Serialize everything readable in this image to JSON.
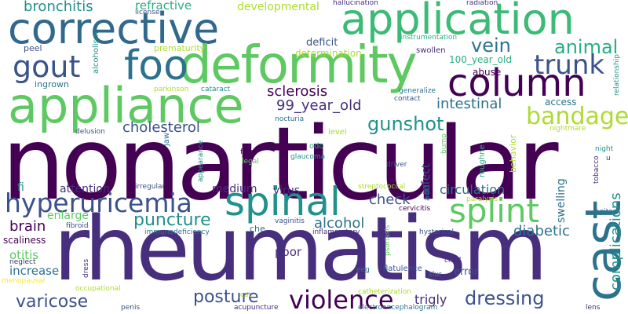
{
  "palette": {
    "dark_purple": "#440154",
    "indigo": "#472f7d",
    "blue": "#3b528b",
    "steel_blue": "#2c728e",
    "teal": "#21918c",
    "sea_green": "#28ae80",
    "green": "#5ec962",
    "lime": "#addc30",
    "yellow": "#fde725"
  },
  "words": [
    {
      "text": "nonarticular",
      "color": "#440154"
    },
    {
      "text": "rheumatism",
      "color": "#472f7d"
    },
    {
      "text": "appliance",
      "color": "#5ec962"
    },
    {
      "text": "corrective",
      "color": "#31688e"
    },
    {
      "text": "application",
      "color": "#3bbb75"
    },
    {
      "text": "deformity",
      "color": "#5ec962"
    },
    {
      "text": "foo",
      "color": "#2c728e"
    },
    {
      "text": "gout",
      "color": "#3b528b"
    },
    {
      "text": "column",
      "color": "#440154"
    },
    {
      "text": "spinal",
      "color": "#21918c"
    },
    {
      "text": "cast",
      "color": "#2c728e"
    },
    {
      "text": "splint",
      "color": "#5ec962"
    },
    {
      "text": "hyperuricemia",
      "color": "#3b528b"
    },
    {
      "text": "violence",
      "color": "#440154"
    },
    {
      "text": "trunk",
      "color": "#3b528b"
    },
    {
      "text": "bandage",
      "color": "#addc30"
    },
    {
      "text": "animal",
      "color": "#28ae80"
    },
    {
      "text": "vein",
      "color": "#2c728e"
    },
    {
      "text": "gunshot",
      "color": "#21918c"
    },
    {
      "text": "dressing",
      "color": "#3b528b"
    },
    {
      "text": "posture",
      "color": "#3b528b"
    },
    {
      "text": "puncture",
      "color": "#21918c"
    },
    {
      "text": "varicose",
      "color": "#3b528b"
    },
    {
      "text": "bronchitis",
      "color": "#21918c"
    },
    {
      "text": "sclerosis",
      "color": "#440154"
    },
    {
      "text": "99_year_old",
      "color": "#472f7d"
    },
    {
      "text": "intestinal",
      "color": "#2c728e"
    },
    {
      "text": "cholesterol",
      "color": "#3b528b"
    },
    {
      "text": "brain",
      "color": "#440154"
    },
    {
      "text": "alcohol",
      "color": "#2c728e"
    },
    {
      "text": "check",
      "color": "#3b528b"
    },
    {
      "text": "diabetic",
      "color": "#2c728e"
    },
    {
      "text": "circulation",
      "color": "#2c728e"
    },
    {
      "text": "complications",
      "color": "#21918c"
    },
    {
      "text": "refractive",
      "color": "#28ae80"
    },
    {
      "text": "developmental",
      "color": "#addc30"
    },
    {
      "text": "trigly",
      "color": "#472f7d"
    },
    {
      "text": "enlarge",
      "color": "#5ec962"
    },
    {
      "text": "increase",
      "color": "#2c728e"
    },
    {
      "text": "otitis",
      "color": "#5ec962"
    },
    {
      "text": "attention",
      "color": "#472f7d"
    },
    {
      "text": "medium",
      "color": "#472f7d"
    },
    {
      "text": "poor",
      "color": "#472f7d"
    },
    {
      "text": "virus",
      "color": "#472f7d"
    },
    {
      "text": "infect",
      "color": "#3b528b"
    },
    {
      "text": "swelling",
      "color": "#2c728e"
    },
    {
      "text": "deficit",
      "color": "#3b528b"
    },
    {
      "text": "determination",
      "color": "#addc30"
    },
    {
      "text": "abuse",
      "color": "#440154"
    },
    {
      "text": "access",
      "color": "#2c728e"
    },
    {
      "text": "error",
      "color": "#3b528b"
    },
    {
      "text": "scaliness",
      "color": "#440154"
    },
    {
      "text": "fi",
      "color": "#21918c"
    },
    {
      "text": "ingrown",
      "color": "#2c728e"
    },
    {
      "text": "peel",
      "color": "#3b528b"
    },
    {
      "text": "prematurity",
      "color": "#addc30"
    },
    {
      "text": "alcoholism",
      "color": "#21918c"
    },
    {
      "text": "license",
      "color": "#3b528b"
    },
    {
      "text": "hallucination",
      "color": "#472f7d"
    },
    {
      "text": "radiation",
      "color": "#472f7d"
    },
    {
      "text": "instrumentation",
      "color": "#28ae80"
    },
    {
      "text": "swollen",
      "color": "#472f7d"
    },
    {
      "text": "100_year_old",
      "color": "#28ae80"
    },
    {
      "text": "generalize",
      "color": "#2c728e"
    },
    {
      "text": "contact",
      "color": "#3b528b"
    },
    {
      "text": "tobacco",
      "color": "#472f7d"
    },
    {
      "text": "relationship",
      "color": "#21918c"
    },
    {
      "text": "parkinson",
      "color": "#addc30"
    },
    {
      "text": "cataract",
      "color": "#21918c"
    },
    {
      "text": "delusion",
      "color": "#3b528b"
    },
    {
      "text": "jaw",
      "color": "#2c728e"
    },
    {
      "text": "appearance",
      "color": "#21918c"
    },
    {
      "text": "nocturia",
      "color": "#2c728e"
    },
    {
      "text": "level",
      "color": "#addc30"
    },
    {
      "text": "odo",
      "color": "#28ae80"
    },
    {
      "text": "glaucoma",
      "color": "#21918c"
    },
    {
      "text": "flow",
      "color": "#440154"
    },
    {
      "text": "legal",
      "color": "#5ec962"
    },
    {
      "text": "irregular",
      "color": "#3b528b"
    },
    {
      "text": "driver",
      "color": "#3b528b"
    },
    {
      "text": "bump",
      "color": "#5ec962"
    },
    {
      "text": "roughne",
      "color": "#28ae80"
    },
    {
      "text": "behavior",
      "color": "#addc30"
    },
    {
      "text": "nightmare",
      "color": "#addc30"
    },
    {
      "text": "night",
      "color": "#21918c"
    },
    {
      "text": "u",
      "color": "#472f7d"
    },
    {
      "text": "streptococcal",
      "color": "#addc30"
    },
    {
      "text": "add",
      "color": "#2c728e"
    },
    {
      "text": "paralysis",
      "color": "#addc30"
    },
    {
      "text": "agitan",
      "color": "#2c728e"
    },
    {
      "text": "cervicitis",
      "color": "#440154"
    },
    {
      "text": "fibroid",
      "color": "#3b528b"
    },
    {
      "text": "immunodeficiency",
      "color": "#2c728e"
    },
    {
      "text": "che",
      "color": "#2c728e"
    },
    {
      "text": "vaginitis",
      "color": "#3b528b"
    },
    {
      "text": "inflammatory",
      "color": "#472f7d"
    },
    {
      "text": "psoriasis",
      "color": "#5ec962"
    },
    {
      "text": "hysterical",
      "color": "#3b528b"
    },
    {
      "text": "neglect",
      "color": "#472f7d"
    },
    {
      "text": "dress",
      "color": "#472f7d"
    },
    {
      "text": "menopausal",
      "color": "#fde725"
    },
    {
      "text": "eeg",
      "color": "#2c728e"
    },
    {
      "text": "flatulence",
      "color": "#3b528b"
    },
    {
      "text": "slur",
      "color": "#2c728e"
    },
    {
      "text": "child",
      "color": "#472f7d"
    },
    {
      "text": "occupational",
      "color": "#addc30"
    },
    {
      "text": "cat",
      "color": "#addc30"
    },
    {
      "text": "catheterization",
      "color": "#addc30"
    },
    {
      "text": "penis",
      "color": "#3b528b"
    },
    {
      "text": "acupuncture",
      "color": "#472f7d"
    },
    {
      "text": "electroencephalogram",
      "color": "#2c728e"
    },
    {
      "text": "lens",
      "color": "#472f7d"
    }
  ]
}
